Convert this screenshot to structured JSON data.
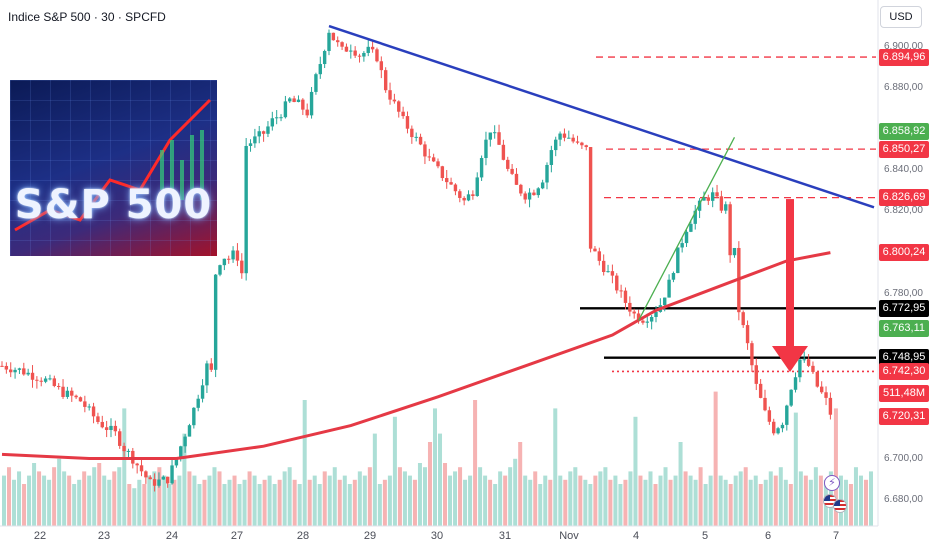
{
  "chart_data": {
    "type": "candlestick",
    "title": "Indice S&P 500 · 30 · SPCFD",
    "currency": "USD",
    "thumbnail_text": "S&P 500",
    "ylim": [
      6675,
      6912
    ],
    "price_ticks": [
      "6.900,00",
      "6.880,00",
      "6.860,00",
      "6.840,00",
      "6.820,00",
      "6.800,00",
      "6.780,00",
      "6.700,00",
      "6.680,00"
    ],
    "time_labels": [
      "22",
      "23",
      "24",
      "27",
      "28",
      "29",
      "30",
      "31",
      "Nov",
      "4",
      "5",
      "6",
      "7"
    ],
    "price_levels": [
      {
        "label": "6.894,96",
        "value": 6894.96,
        "style": "dashed-red",
        "badge": "#f23645"
      },
      {
        "label": "6.858,92",
        "value": 6858.92,
        "style": "none",
        "badge": "#4caf50"
      },
      {
        "label": "6.850,27",
        "value": 6850.27,
        "style": "dashed-red",
        "badge": "#f23645"
      },
      {
        "label": "6.826,69",
        "value": 6826.69,
        "style": "dashed-red",
        "badge": "#f23645"
      },
      {
        "label": "6.800,24",
        "value": 6800.24,
        "style": "none",
        "badge": "#f23645"
      },
      {
        "label": "6.772,95",
        "value": 6772.95,
        "style": "solid-black",
        "badge": "#000000"
      },
      {
        "label": "6.763,11",
        "value": 6763.11,
        "style": "none",
        "badge": "#4caf50"
      },
      {
        "label": "6.748,95",
        "value": 6748.95,
        "style": "solid-black",
        "badge": "#000000"
      },
      {
        "label": "6.742,30",
        "value": 6742.3,
        "style": "dotted-red",
        "badge": "#f23645"
      },
      {
        "label": "511,48M",
        "value": 6731.5,
        "style": "none",
        "badge": "#f23645"
      },
      {
        "label": "6.720,31",
        "value": 6720.31,
        "style": "none",
        "badge": "#f23645"
      }
    ],
    "close_path": [
      [
        0,
        6745
      ],
      [
        4,
        6743
      ],
      [
        10,
        6738
      ],
      [
        14,
        6732
      ],
      [
        18,
        6728
      ],
      [
        22,
        6718
      ],
      [
        26,
        6712
      ],
      [
        28,
        6705
      ],
      [
        30,
        6700
      ],
      [
        32,
        6694
      ],
      [
        34,
        6688
      ],
      [
        38,
        6690
      ],
      [
        40,
        6700
      ],
      [
        42,
        6712
      ],
      [
        44,
        6724
      ],
      [
        46,
        6738
      ],
      [
        47,
        6745
      ],
      [
        48,
        6742
      ],
      [
        49,
        6790
      ],
      [
        50,
        6796
      ],
      [
        51,
        6798
      ],
      [
        52,
        6797
      ],
      [
        53,
        6799
      ],
      [
        54,
        6798
      ],
      [
        55,
        6790
      ],
      [
        56,
        6852
      ],
      [
        58,
        6855
      ],
      [
        60,
        6858
      ],
      [
        62,
        6864
      ],
      [
        64,
        6868
      ],
      [
        66,
        6874
      ],
      [
        68,
        6872
      ],
      [
        70,
        6868
      ],
      [
        71,
        6876
      ],
      [
        72,
        6885
      ],
      [
        73,
        6892
      ],
      [
        74,
        6900
      ],
      [
        75,
        6908
      ],
      [
        76,
        6904
      ],
      [
        78,
        6898
      ],
      [
        80,
        6900
      ],
      [
        82,
        6896
      ],
      [
        84,
        6898
      ],
      [
        86,
        6895
      ],
      [
        88,
        6880
      ],
      [
        90,
        6872
      ],
      [
        91,
        6868
      ],
      [
        92,
        6864
      ],
      [
        94,
        6858
      ],
      [
        96,
        6852
      ],
      [
        98,
        6845
      ],
      [
        100,
        6840
      ],
      [
        102,
        6835
      ],
      [
        104,
        6830
      ],
      [
        106,
        6825
      ],
      [
        108,
        6830
      ],
      [
        110,
        6848
      ],
      [
        112,
        6860
      ],
      [
        114,
        6852
      ],
      [
        116,
        6840
      ],
      [
        118,
        6832
      ],
      [
        120,
        6828
      ],
      [
        122,
        6830
      ],
      [
        124,
        6836
      ],
      [
        126,
        6850
      ],
      [
        128,
        6858
      ],
      [
        130,
        6856
      ],
      [
        132,
        6852
      ],
      [
        134,
        6850
      ],
      [
        135,
        6803
      ],
      [
        137,
        6796
      ],
      [
        139,
        6790
      ],
      [
        141,
        6783
      ],
      [
        143,
        6776
      ],
      [
        145,
        6770
      ],
      [
        147,
        6768
      ],
      [
        149,
        6770
      ],
      [
        151,
        6775
      ],
      [
        153,
        6785
      ],
      [
        155,
        6800
      ],
      [
        157,
        6812
      ],
      [
        159,
        6820
      ],
      [
        161,
        6826
      ],
      [
        163,
        6828
      ],
      [
        165,
        6822
      ],
      [
        167,
        6800
      ],
      [
        169,
        6772
      ],
      [
        171,
        6755
      ],
      [
        173,
        6735
      ],
      [
        175,
        6722
      ],
      [
        177,
        6714
      ],
      [
        179,
        6718
      ],
      [
        181,
        6735
      ],
      [
        183,
        6748
      ],
      [
        185,
        6745
      ],
      [
        187,
        6735
      ],
      [
        189,
        6728
      ],
      [
        190,
        6722
      ]
    ],
    "ma_path": [
      [
        0,
        6702
      ],
      [
        20,
        6700
      ],
      [
        40,
        6700
      ],
      [
        60,
        6706
      ],
      [
        80,
        6716
      ],
      [
        100,
        6730
      ],
      [
        120,
        6745
      ],
      [
        140,
        6760
      ],
      [
        150,
        6772
      ],
      [
        160,
        6780
      ],
      [
        170,
        6788
      ],
      [
        180,
        6796
      ],
      [
        190,
        6800
      ]
    ],
    "volumes": [
      12,
      14,
      11,
      13,
      10,
      12,
      15,
      13,
      12,
      11,
      14,
      16,
      13,
      12,
      10,
      11,
      13,
      12,
      14,
      15,
      12,
      11,
      13,
      14,
      28,
      10,
      9,
      11,
      10,
      12,
      13,
      14,
      12,
      10,
      11,
      12,
      22,
      13,
      12,
      10,
      11,
      12,
      14,
      13,
      10,
      11,
      12,
      10,
      11,
      13,
      12,
      10,
      11,
      12,
      10,
      11,
      13,
      14,
      11,
      10,
      30,
      11,
      12,
      10,
      13,
      12,
      14,
      11,
      12,
      10,
      11,
      13,
      12,
      14,
      22,
      10,
      11,
      12,
      26,
      14,
      13,
      12,
      11,
      15,
      14,
      20,
      28,
      22,
      15,
      12,
      13,
      14,
      11,
      12,
      30,
      14,
      12,
      11,
      10,
      13,
      12,
      14,
      16,
      20,
      12,
      11,
      13,
      10,
      12,
      11,
      28,
      12,
      11,
      13,
      14,
      12,
      11,
      10,
      12,
      13,
      14,
      11,
      12,
      10,
      11,
      13,
      26,
      12,
      11,
      13,
      10,
      12,
      14,
      11,
      12,
      20,
      13,
      12,
      11,
      14,
      10,
      12,
      32,
      12,
      11,
      10,
      12,
      13,
      14,
      11,
      12,
      10,
      11,
      13,
      12,
      14,
      11,
      10,
      27,
      13,
      12,
      11,
      14,
      12,
      11,
      13,
      28,
      12,
      11,
      10,
      14,
      12,
      11,
      13
    ],
    "drawings": [
      {
        "type": "trendline",
        "color": "#2a3fbd",
        "from": [
          75,
          6910
        ],
        "to": [
          200,
          6822
        ]
      },
      {
        "type": "trendline",
        "color": "#4caf50",
        "from": [
          146,
          6767
        ],
        "to": [
          168,
          6856
        ]
      },
      {
        "type": "arrow",
        "color": "#f23645",
        "from_value": 6826,
        "to_value": 6742
      }
    ],
    "events": [
      "lightning",
      "flag",
      "flag"
    ]
  }
}
